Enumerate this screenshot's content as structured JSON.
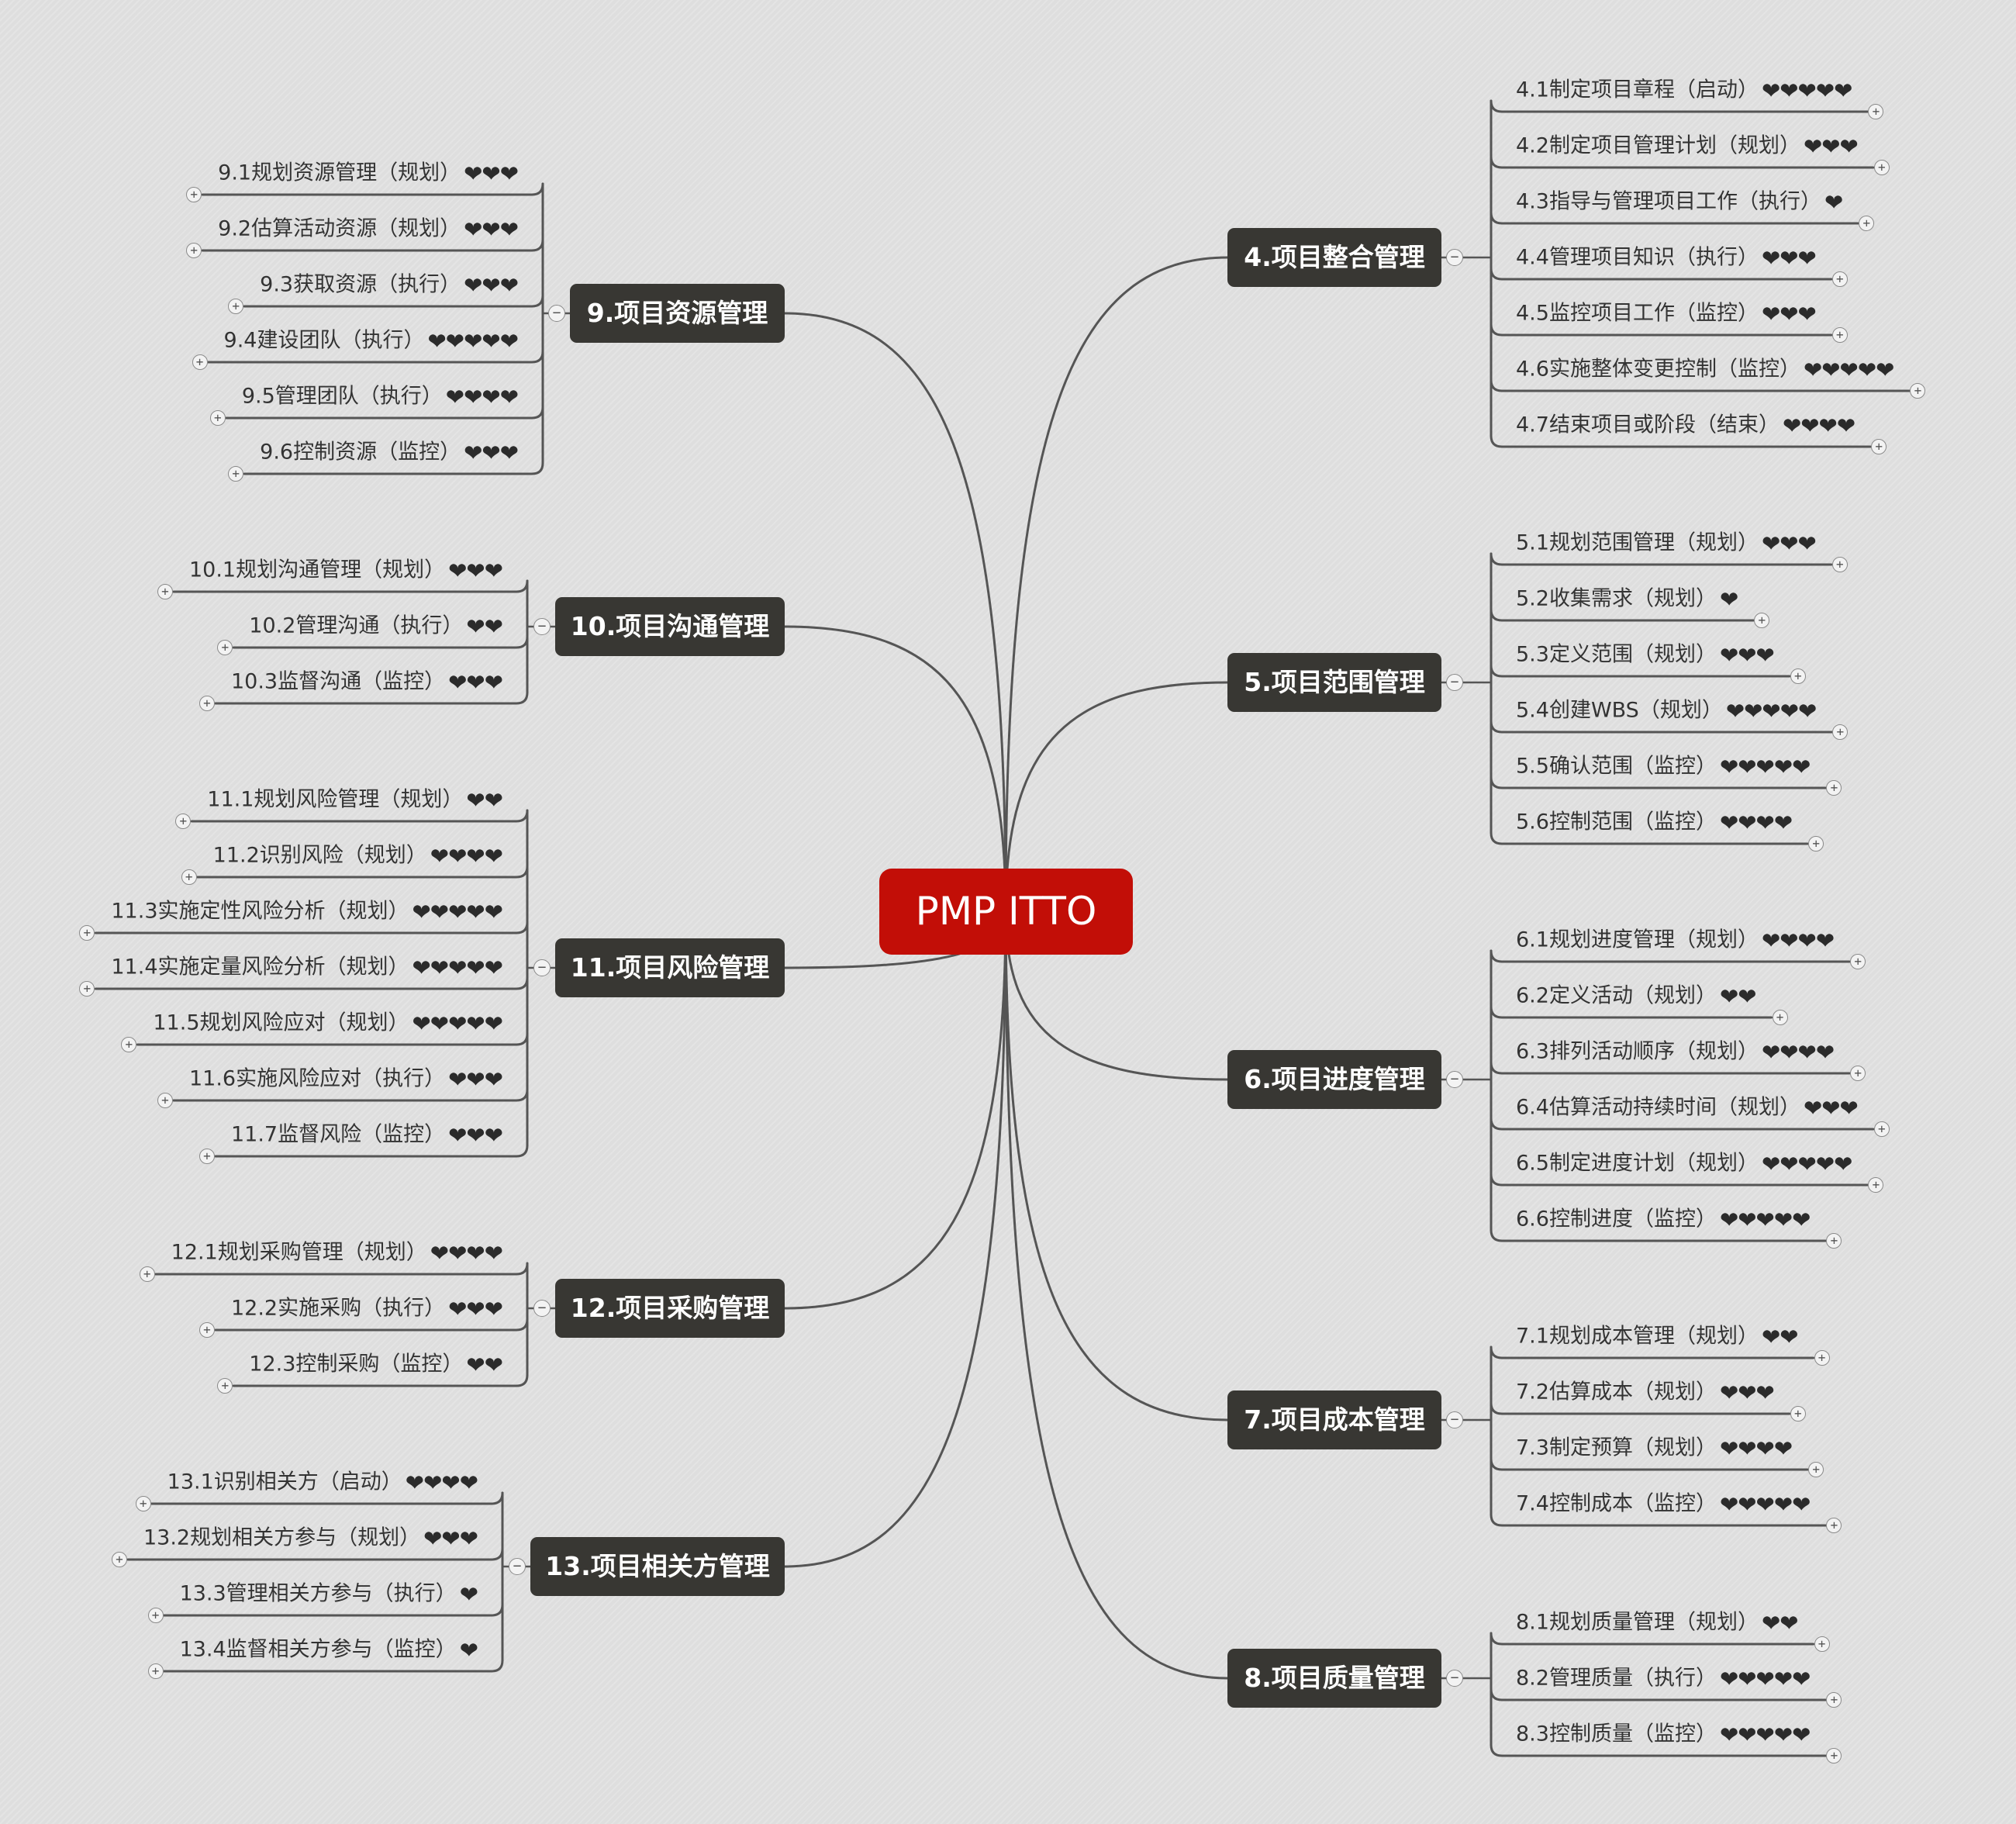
{
  "central_topic": "PMP ITTO",
  "heart_glyph": "❤",
  "collapse_glyph": "−",
  "expand_glyph": "+",
  "line_color": "#555555",
  "colors": {
    "central": "#c20e07",
    "topic": "#383733",
    "background": "#dedede"
  },
  "branches": [
    {
      "id": "b4",
      "side": "right",
      "title": "4.项目整合管理",
      "items": [
        {
          "text": "4.1制定项目章程（启动）",
          "hearts": 5
        },
        {
          "text": "4.2制定项目管理计划（规划）",
          "hearts": 3
        },
        {
          "text": "4.3指导与管理项目工作（执行）",
          "hearts": 1
        },
        {
          "text": "4.4管理项目知识（执行）",
          "hearts": 3
        },
        {
          "text": "4.5监控项目工作（监控）",
          "hearts": 3
        },
        {
          "text": "4.6实施整体变更控制（监控）",
          "hearts": 5
        },
        {
          "text": "4.7结束项目或阶段（结束）",
          "hearts": 4
        }
      ]
    },
    {
      "id": "b5",
      "side": "right",
      "title": "5.项目范围管理",
      "items": [
        {
          "text": "5.1规划范围管理（规划）",
          "hearts": 3
        },
        {
          "text": "5.2收集需求（规划）",
          "hearts": 1
        },
        {
          "text": "5.3定义范围（规划）",
          "hearts": 3
        },
        {
          "text": "5.4创建WBS（规划）",
          "hearts": 5
        },
        {
          "text": "5.5确认范围（监控）",
          "hearts": 5
        },
        {
          "text": "5.6控制范围（监控）",
          "hearts": 4
        }
      ]
    },
    {
      "id": "b6",
      "side": "right",
      "title": "6.项目进度管理",
      "items": [
        {
          "text": "6.1规划进度管理（规划）",
          "hearts": 4
        },
        {
          "text": "6.2定义活动（规划）",
          "hearts": 2
        },
        {
          "text": "6.3排列活动顺序（规划）",
          "hearts": 4
        },
        {
          "text": "6.4估算活动持续时间（规划）",
          "hearts": 3
        },
        {
          "text": "6.5制定进度计划（规划）",
          "hearts": 5
        },
        {
          "text": "6.6控制进度（监控）",
          "hearts": 5
        }
      ]
    },
    {
      "id": "b7",
      "side": "right",
      "title": "7.项目成本管理",
      "items": [
        {
          "text": "7.1规划成本管理（规划）",
          "hearts": 2
        },
        {
          "text": "7.2估算成本（规划）",
          "hearts": 3
        },
        {
          "text": "7.3制定预算（规划）",
          "hearts": 4
        },
        {
          "text": "7.4控制成本（监控）",
          "hearts": 5
        }
      ]
    },
    {
      "id": "b8",
      "side": "right",
      "title": "8.项目质量管理",
      "items": [
        {
          "text": "8.1规划质量管理（规划）",
          "hearts": 2
        },
        {
          "text": "8.2管理质量（执行）",
          "hearts": 5
        },
        {
          "text": "8.3控制质量（监控）",
          "hearts": 5
        }
      ]
    },
    {
      "id": "b9",
      "side": "left",
      "title": "9.项目资源管理",
      "items": [
        {
          "text": "9.1规划资源管理（规划）",
          "hearts": 3
        },
        {
          "text": "9.2估算活动资源（规划）",
          "hearts": 3
        },
        {
          "text": "9.3获取资源（执行）",
          "hearts": 3
        },
        {
          "text": "9.4建设团队（执行）",
          "hearts": 5
        },
        {
          "text": "9.5管理团队（执行）",
          "hearts": 4
        },
        {
          "text": "9.6控制资源（监控）",
          "hearts": 3
        }
      ]
    },
    {
      "id": "b10",
      "side": "left",
      "title": "10.项目沟通管理",
      "items": [
        {
          "text": "10.1规划沟通管理（规划）",
          "hearts": 3
        },
        {
          "text": "10.2管理沟通（执行）",
          "hearts": 2
        },
        {
          "text": "10.3监督沟通（监控）",
          "hearts": 3
        }
      ]
    },
    {
      "id": "b11",
      "side": "left",
      "title": "11.项目风险管理",
      "items": [
        {
          "text": "11.1规划风险管理（规划）",
          "hearts": 2
        },
        {
          "text": "11.2识别风险（规划）",
          "hearts": 4
        },
        {
          "text": "11.3实施定性风险分析（规划）",
          "hearts": 5
        },
        {
          "text": "11.4实施定量风险分析（规划）",
          "hearts": 5
        },
        {
          "text": "11.5规划风险应对（规划）",
          "hearts": 5
        },
        {
          "text": "11.6实施风险应对（执行）",
          "hearts": 3
        },
        {
          "text": "11.7监督风险（监控）",
          "hearts": 3
        }
      ]
    },
    {
      "id": "b12",
      "side": "left",
      "title": "12.项目采购管理",
      "items": [
        {
          "text": "12.1规划采购管理（规划）",
          "hearts": 4
        },
        {
          "text": "12.2实施采购（执行）",
          "hearts": 3
        },
        {
          "text": "12.3控制采购（监控）",
          "hearts": 2
        }
      ]
    },
    {
      "id": "b13",
      "side": "left",
      "title": "13.项目相关方管理",
      "items": [
        {
          "text": "13.1识别相关方（启动）",
          "hearts": 4
        },
        {
          "text": "13.2规划相关方参与（规划）",
          "hearts": 3
        },
        {
          "text": "13.3管理相关方参与（执行）",
          "hearts": 1
        },
        {
          "text": "13.4监督相关方参与（监控）",
          "hearts": 1
        }
      ]
    }
  ]
}
